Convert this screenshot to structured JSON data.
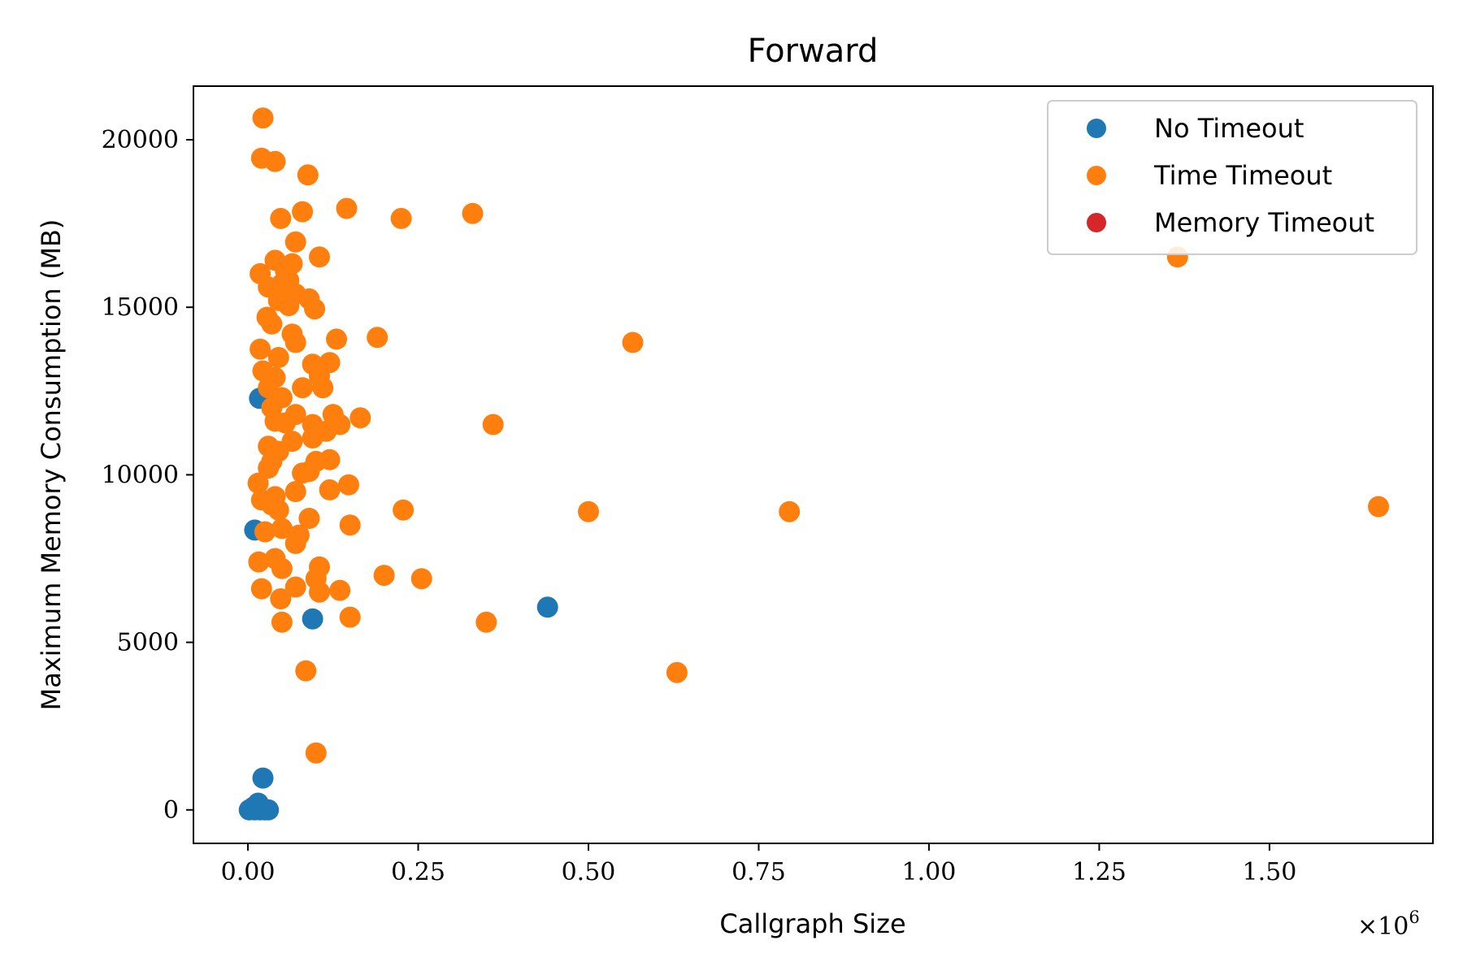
{
  "chart_data": {
    "type": "scatter",
    "title": "Forward",
    "xlabel": "Callgraph Size",
    "ylabel": "Maximum Memory Consumption (MB)",
    "x_multiplier_label": "×10",
    "x_multiplier_exponent": "6",
    "xlim": [
      -0.08,
      1.74
    ],
    "ylim": [
      -1000,
      21600
    ],
    "x_ticks": [
      {
        "value": 0.0,
        "label": "0.00"
      },
      {
        "value": 0.25,
        "label": "0.25"
      },
      {
        "value": 0.5,
        "label": "0.50"
      },
      {
        "value": 0.75,
        "label": "0.75"
      },
      {
        "value": 1.0,
        "label": "1.00"
      },
      {
        "value": 1.25,
        "label": "1.25"
      },
      {
        "value": 1.5,
        "label": "1.50"
      }
    ],
    "y_ticks": [
      {
        "value": 0,
        "label": "0"
      },
      {
        "value": 5000,
        "label": "5000"
      },
      {
        "value": 10000,
        "label": "10000"
      },
      {
        "value": 15000,
        "label": "15000"
      },
      {
        "value": 20000,
        "label": "20000"
      }
    ],
    "grid": false,
    "legend_position": "top-right",
    "series": [
      {
        "name": "No Timeout",
        "color": "#1f77b4",
        "points": [
          [
            0.002,
            0
          ],
          [
            0.005,
            30
          ],
          [
            0.008,
            80
          ],
          [
            0.01,
            0
          ],
          [
            0.012,
            120
          ],
          [
            0.015,
            200
          ],
          [
            0.018,
            0
          ],
          [
            0.02,
            60
          ],
          [
            0.025,
            0
          ],
          [
            0.03,
            0
          ],
          [
            0.022,
            950
          ],
          [
            0.01,
            8350
          ],
          [
            0.017,
            12280
          ],
          [
            0.095,
            5700
          ],
          [
            0.44,
            6050
          ]
        ]
      },
      {
        "name": "Time Timeout",
        "color": "#ff7f0e",
        "points": [
          [
            0.022,
            20650
          ],
          [
            0.02,
            19450
          ],
          [
            0.04,
            19350
          ],
          [
            0.088,
            18950
          ],
          [
            0.145,
            17950
          ],
          [
            0.08,
            17850
          ],
          [
            0.048,
            17650
          ],
          [
            0.225,
            17650
          ],
          [
            0.33,
            17800
          ],
          [
            0.07,
            16950
          ],
          [
            0.105,
            16500
          ],
          [
            1.365,
            16500
          ],
          [
            0.04,
            16400
          ],
          [
            0.065,
            16300
          ],
          [
            0.055,
            16100
          ],
          [
            0.018,
            16000
          ],
          [
            0.06,
            15800
          ],
          [
            0.05,
            15700
          ],
          [
            0.03,
            15600
          ],
          [
            0.07,
            15400
          ],
          [
            0.09,
            15250
          ],
          [
            0.045,
            15200
          ],
          [
            0.06,
            15050
          ],
          [
            0.098,
            14950
          ],
          [
            0.028,
            14700
          ],
          [
            0.035,
            14500
          ],
          [
            0.065,
            14200
          ],
          [
            0.13,
            14050
          ],
          [
            0.19,
            14100
          ],
          [
            0.565,
            13950
          ],
          [
            0.07,
            13950
          ],
          [
            0.018,
            13750
          ],
          [
            0.045,
            13500
          ],
          [
            0.095,
            13300
          ],
          [
            0.12,
            13350
          ],
          [
            0.022,
            13100
          ],
          [
            0.04,
            12900
          ],
          [
            0.105,
            12950
          ],
          [
            0.08,
            12600
          ],
          [
            0.11,
            12600
          ],
          [
            0.03,
            12600
          ],
          [
            0.05,
            12300
          ],
          [
            0.035,
            12000
          ],
          [
            0.07,
            11800
          ],
          [
            0.125,
            11800
          ],
          [
            0.165,
            11700
          ],
          [
            0.04,
            11600
          ],
          [
            0.055,
            11550
          ],
          [
            0.095,
            11500
          ],
          [
            0.135,
            11500
          ],
          [
            0.36,
            11500
          ],
          [
            0.115,
            11300
          ],
          [
            0.095,
            11100
          ],
          [
            0.065,
            11000
          ],
          [
            0.03,
            10850
          ],
          [
            0.045,
            10700
          ],
          [
            0.035,
            10400
          ],
          [
            0.1,
            10400
          ],
          [
            0.12,
            10450
          ],
          [
            0.03,
            10200
          ],
          [
            0.08,
            10050
          ],
          [
            0.09,
            10100
          ],
          [
            0.015,
            9750
          ],
          [
            0.148,
            9700
          ],
          [
            0.07,
            9500
          ],
          [
            0.12,
            9550
          ],
          [
            0.04,
            9350
          ],
          [
            0.02,
            9250
          ],
          [
            0.035,
            9100
          ],
          [
            0.045,
            8950
          ],
          [
            0.228,
            8950
          ],
          [
            0.5,
            8900
          ],
          [
            0.795,
            8900
          ],
          [
            1.66,
            9050
          ],
          [
            0.09,
            8700
          ],
          [
            0.15,
            8500
          ],
          [
            0.05,
            8400
          ],
          [
            0.025,
            8300
          ],
          [
            0.075,
            8200
          ],
          [
            0.07,
            7950
          ],
          [
            0.04,
            7500
          ],
          [
            0.016,
            7400
          ],
          [
            0.05,
            7200
          ],
          [
            0.105,
            7250
          ],
          [
            0.2,
            7000
          ],
          [
            0.255,
            6900
          ],
          [
            0.1,
            6900
          ],
          [
            0.07,
            6650
          ],
          [
            0.135,
            6550
          ],
          [
            0.105,
            6500
          ],
          [
            0.02,
            6600
          ],
          [
            0.048,
            6300
          ],
          [
            0.15,
            5750
          ],
          [
            0.05,
            5600
          ],
          [
            0.35,
            5600
          ],
          [
            0.085,
            4150
          ],
          [
            0.63,
            4100
          ],
          [
            0.1,
            1700
          ]
        ]
      },
      {
        "name": "Memory Timeout",
        "color": "#d62728",
        "points": []
      }
    ]
  }
}
